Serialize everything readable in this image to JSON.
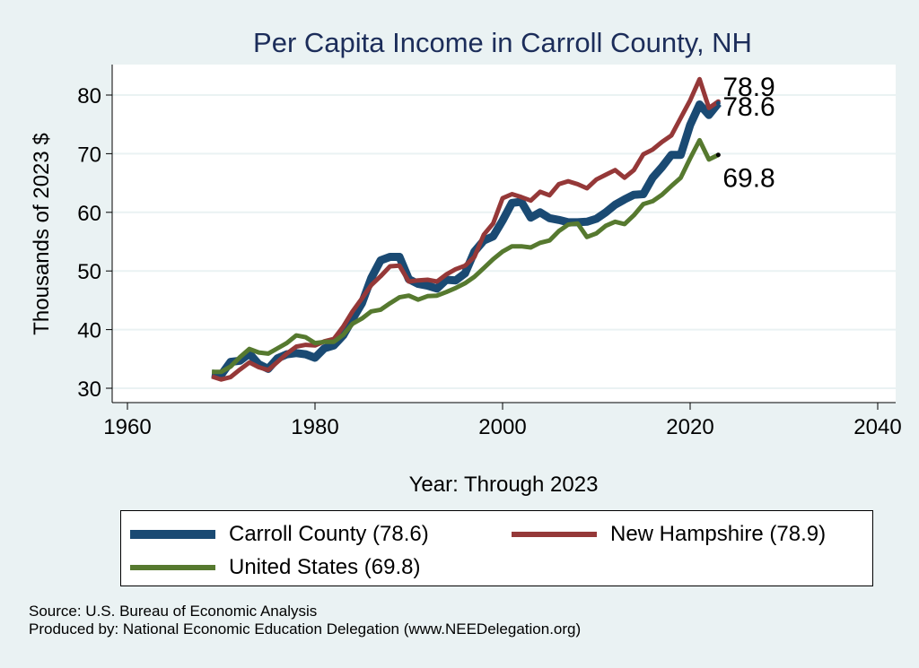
{
  "chart_data": {
    "type": "line",
    "title": "Per Capita Income in Carroll County, NH",
    "xlabel": "Year: Through 2023",
    "ylabel": "Thousands of 2023 $",
    "xlim": [
      1959,
      2042
    ],
    "ylim": [
      28.4,
      85.5
    ],
    "xticks": [
      1960,
      1980,
      2000,
      2020,
      2040
    ],
    "yticks": [
      30,
      40,
      50,
      60,
      70,
      80
    ],
    "grid": "horizontal",
    "legend_placement": "bottom",
    "x": [
      1969,
      1970,
      1971,
      1972,
      1973,
      1974,
      1975,
      1976,
      1977,
      1978,
      1979,
      1980,
      1981,
      1982,
      1983,
      1984,
      1985,
      1986,
      1987,
      1988,
      1989,
      1990,
      1991,
      1992,
      1993,
      1994,
      1995,
      1996,
      1997,
      1998,
      1999,
      2000,
      2001,
      2002,
      2003,
      2004,
      2005,
      2006,
      2007,
      2008,
      2009,
      2010,
      2011,
      2012,
      2013,
      2014,
      2015,
      2016,
      2017,
      2018,
      2019,
      2020,
      2021,
      2022,
      2023
    ],
    "series": [
      {
        "name": "Carroll County",
        "legend_label": "Carroll County (78.6)",
        "color": "#1a4a73",
        "values": [
          32.5,
          32.3,
          34.5,
          34.7,
          35.9,
          34.1,
          33.3,
          35.1,
          35.8,
          36.0,
          35.8,
          35.2,
          36.8,
          37.3,
          39.0,
          41.8,
          44.5,
          48.8,
          51.8,
          52.4,
          52.4,
          48.6,
          47.8,
          47.5,
          47.0,
          48.5,
          48.4,
          49.6,
          53.3,
          55.2,
          55.9,
          58.6,
          61.6,
          61.8,
          59.1,
          60.0,
          59.0,
          58.7,
          58.3,
          58.3,
          58.4,
          58.9,
          60.0,
          61.3,
          62.2,
          63.0,
          63.1,
          65.9,
          67.7,
          69.8,
          69.8,
          74.9,
          78.4,
          76.6,
          78.6
        ]
      },
      {
        "name": "New Hampshire",
        "legend_label": "New Hampshire (78.9)",
        "color": "#953838",
        "values": [
          32.0,
          31.5,
          31.9,
          33.2,
          34.4,
          33.6,
          33.1,
          34.5,
          35.9,
          37.1,
          37.4,
          37.3,
          38.0,
          38.4,
          40.5,
          43.1,
          45.3,
          47.6,
          49.1,
          50.8,
          50.9,
          48.2,
          48.4,
          48.5,
          48.2,
          49.4,
          50.3,
          50.9,
          52.4,
          56.2,
          58.1,
          62.4,
          63.1,
          62.6,
          62.0,
          63.5,
          62.9,
          64.8,
          65.3,
          64.8,
          64.1,
          65.6,
          66.4,
          67.2,
          65.9,
          67.2,
          69.9,
          70.7,
          72.0,
          73.1,
          76.1,
          79.1,
          82.7,
          77.8,
          78.9
        ]
      },
      {
        "name": "United States",
        "legend_label": "United States (69.8)",
        "color": "#56792f",
        "values": [
          32.8,
          32.8,
          33.7,
          35.3,
          36.7,
          36.1,
          35.9,
          36.8,
          37.7,
          39.0,
          38.7,
          37.7,
          37.9,
          37.9,
          39.1,
          41.0,
          41.9,
          43.1,
          43.4,
          44.5,
          45.5,
          45.8,
          45.1,
          45.7,
          45.8,
          46.4,
          47.1,
          47.9,
          49.0,
          50.5,
          52.0,
          53.3,
          54.2,
          54.2,
          54.0,
          54.8,
          55.2,
          56.8,
          57.9,
          58.1,
          55.8,
          56.4,
          57.7,
          58.4,
          58.0,
          59.5,
          61.4,
          61.9,
          63.0,
          64.5,
          65.9,
          69.2,
          72.3,
          69.0,
          69.8
        ]
      }
    ],
    "end_labels": [
      {
        "series": "New Hampshire",
        "text": "78.9",
        "value": 78.9
      },
      {
        "series": "Carroll County",
        "text": "78.6",
        "value": 78.6
      },
      {
        "series": "United States",
        "text": "69.8",
        "value": 69.8
      }
    ]
  },
  "legend": {
    "items": [
      {
        "label": "Carroll County (78.6)",
        "color": "#1a4a73"
      },
      {
        "label": "New Hampshire (78.9)",
        "color": "#953838"
      },
      {
        "label": "United States (69.8)",
        "color": "#56792f"
      }
    ]
  },
  "notes": {
    "source": "Source: U.S. Bureau of Economic Analysis",
    "produced_by": "Produced by: National Economic Education Delegation (www.NEEDelegation.org)"
  }
}
